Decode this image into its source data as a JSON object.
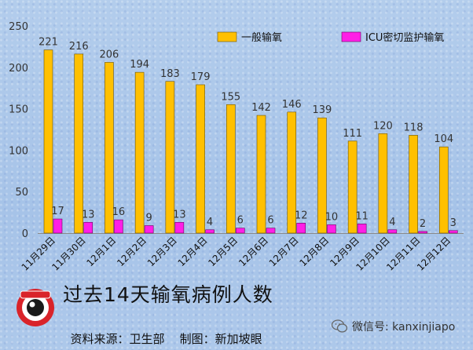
{
  "chart_data": {
    "type": "bar",
    "title": "过去14天输氧病例人数",
    "categories": [
      "11月29日",
      "11月30日",
      "12月1日",
      "12月2日",
      "12月3日",
      "12月4日",
      "12月5日",
      "12月6日",
      "12月7日",
      "12月8日",
      "12月9日",
      "12月10日",
      "12月11日",
      "12月12日"
    ],
    "series": [
      {
        "name": "一般输氧",
        "color": "#ffc000",
        "values": [
          221,
          216,
          206,
          194,
          183,
          179,
          155,
          142,
          146,
          139,
          111,
          120,
          118,
          104
        ]
      },
      {
        "name": "ICU密切监护输氧",
        "color": "#ff1fe6",
        "values": [
          17,
          13,
          16,
          9,
          13,
          4,
          6,
          6,
          12,
          10,
          11,
          4,
          2,
          3
        ]
      }
    ],
    "ylim": [
      0,
      250
    ],
    "yticks": [
      0,
      50,
      100,
      150,
      200,
      250
    ],
    "legend_position": "top-right",
    "grid": false
  },
  "footer": {
    "title": "过去14天输氧病例人数",
    "source_label": "资料来源：卫生部",
    "maker_label": "制图：新加坡眼",
    "wechat": "微信号: kanxinjiapo",
    "logo_icon": "eye-logo-icon"
  }
}
